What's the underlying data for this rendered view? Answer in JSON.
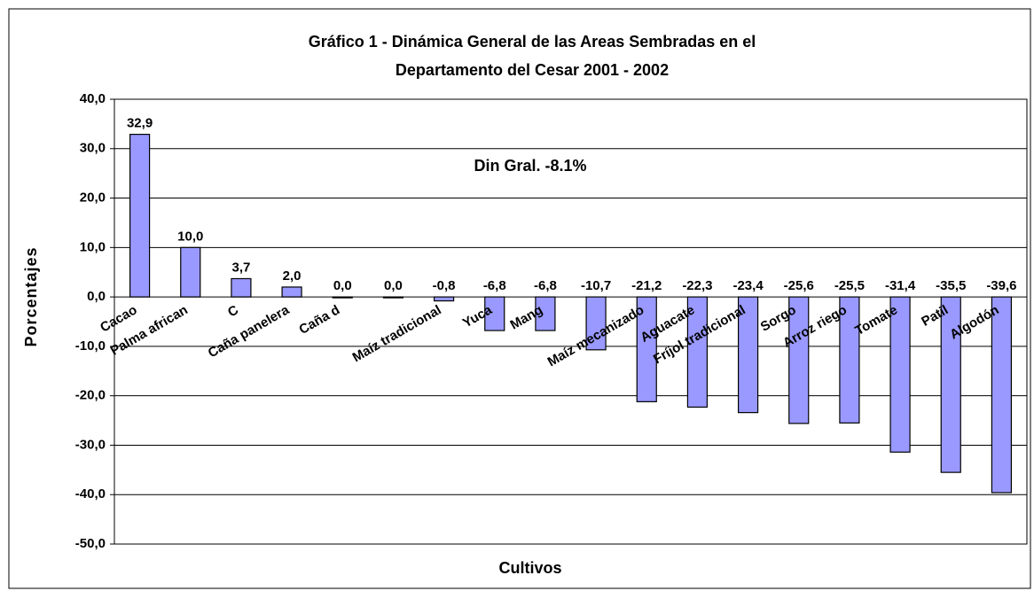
{
  "chart_data": {
    "type": "bar",
    "title": [
      "Gráfico 1 - Dinámica General de las Areas Sembradas en el",
      "Departamento del Cesar 2001 - 2002"
    ],
    "annotation": "Din Gral. -8.1%",
    "x_label": "Cultivos",
    "y_label": "Porcentajes",
    "categories": [
      "Cacao",
      "Palma african",
      "C",
      "Caña panelera",
      "Caña d",
      null,
      "Maíz tradicional",
      "Yuca",
      "Mang",
      null,
      "Maíz mecanizado",
      "Aguacate",
      "Fríjol tradicional",
      "Sorgo",
      "Arroz riego",
      "Tomate",
      "Patil",
      "Algodón"
    ],
    "values": [
      32.9,
      10.0,
      3.7,
      2.0,
      0.0,
      0.0,
      -0.8,
      -6.8,
      -6.8,
      -10.7,
      -21.2,
      -22.3,
      -23.4,
      -25.6,
      -25.5,
      -31.4,
      -35.5,
      -39.6
    ],
    "value_labels": [
      "32,9",
      "10,0",
      "3,7",
      "2,0",
      "0,0",
      "0,0",
      "-0,8",
      "-6,8",
      "-6,8",
      "-10,7",
      "-21,2",
      "-22,3",
      "-23,4",
      "-25,6",
      "-25,5",
      "-31,4",
      "-35,5",
      "-39,6"
    ],
    "color": "#9999ff",
    "ylim": [
      -50,
      40
    ],
    "yticks": [
      {
        "value": -50,
        "label": "-50,0"
      },
      {
        "value": -40,
        "label": "-40,0"
      },
      {
        "value": -30,
        "label": "-30,0"
      },
      {
        "value": -20,
        "label": "-20,0"
      },
      {
        "value": -10,
        "label": "-10,0"
      },
      {
        "value": 0,
        "label": "0,0"
      },
      {
        "value": 10,
        "label": "10,0"
      },
      {
        "value": 20,
        "label": "20,0"
      },
      {
        "value": 30,
        "label": "30,0"
      },
      {
        "value": 40,
        "label": "40,0"
      }
    ],
    "grid": true
  }
}
